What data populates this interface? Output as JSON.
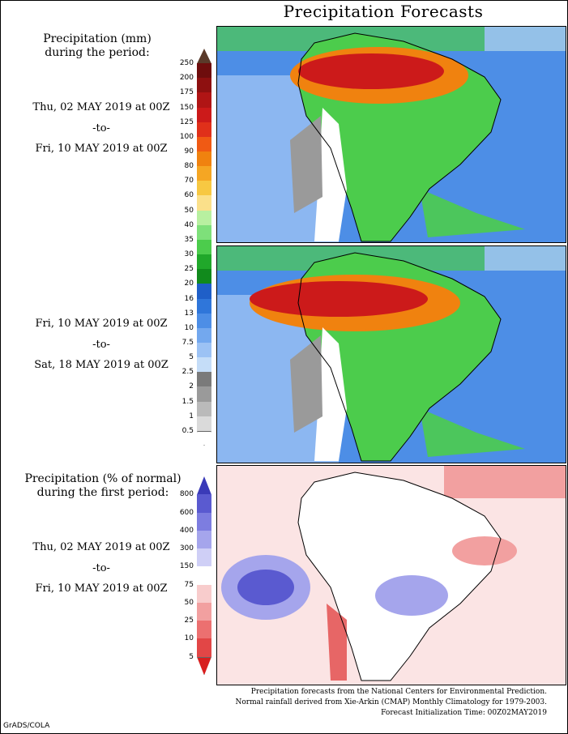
{
  "title": "Precipitation Forecasts",
  "panel_top": {
    "heading_line1": "Precipitation (mm)",
    "heading_line2": "during the period:",
    "period1": {
      "start": "Thu, 02 MAY 2019 at 00Z",
      "to": "-to-",
      "end": "Fri, 10 MAY 2019 at 00Z"
    },
    "period2": {
      "start": "Fri, 10 MAY 2019 at 00Z",
      "to": "-to-",
      "end": "Sat, 18 MAY 2019 at 00Z"
    }
  },
  "panel_bottom": {
    "heading_line1": "Precipitation (% of normal)",
    "heading_line2": "during the first period:",
    "period": {
      "start": "Thu, 02 MAY 2019 at 00Z",
      "to": "-to-",
      "end": "Fri, 10 MAY 2019 at 00Z"
    }
  },
  "colorbar_mm": {
    "ticks": [
      "250",
      "200",
      "175",
      "150",
      "125",
      "100",
      "90",
      "80",
      "70",
      "60",
      "50",
      "40",
      "35",
      "30",
      "25",
      "20",
      "16",
      "13",
      "10",
      "7.5",
      "5",
      "2.5",
      "2",
      "1.5",
      "1",
      "0.5"
    ],
    "colors": [
      "#5a3a2a",
      "#6e0d0d",
      "#8e1010",
      "#b01515",
      "#cc1a1a",
      "#e0301a",
      "#f05a14",
      "#f0820f",
      "#f5a623",
      "#f7c842",
      "#fbe08a",
      "#b8f0a0",
      "#7ee07a",
      "#4ccc4c",
      "#20a82a",
      "#118a1c",
      "#1f5fc8",
      "#2f76da",
      "#4d8ee6",
      "#73a8ee",
      "#9cc2f4",
      "#c5ddf8",
      "#7a7a7a",
      "#9a9a9a",
      "#bababa",
      "#dadada",
      "#ffffff"
    ]
  },
  "colorbar_pct": {
    "ticks": [
      "800",
      "600",
      "400",
      "300",
      "150",
      "75",
      "50",
      "25",
      "10",
      "5"
    ],
    "colors": [
      "#3a3ab8",
      "#5a5ad0",
      "#7d7de0",
      "#a5a5ec",
      "#cfcff6",
      "#ffffff",
      "#f8cccc",
      "#f2a0a0",
      "#ec7070",
      "#e24646",
      "#d81e1e"
    ]
  },
  "footer": {
    "line1": "Precipitation forecasts from the National Centers for Environmental Prediction.",
    "line2": "Normal rainfall derived from Xie-Arkin (CMAP) Monthly Climatology for 1979-2003.",
    "line3": "Forecast Initialization Time: 00Z02MAY2019"
  },
  "credit": "GrADS/COLA",
  "map_colors": {
    "ocean_blue": "#4d8ee6",
    "ocean_light": "#9cc2f4",
    "land_green": "#4ccc4c",
    "heavy_red": "#cc1a1a",
    "heavy_orange": "#f0820f",
    "dry_gray": "#9a9a9a",
    "pct_red": "#f2a0a0",
    "pct_blue": "#a5a5ec"
  }
}
